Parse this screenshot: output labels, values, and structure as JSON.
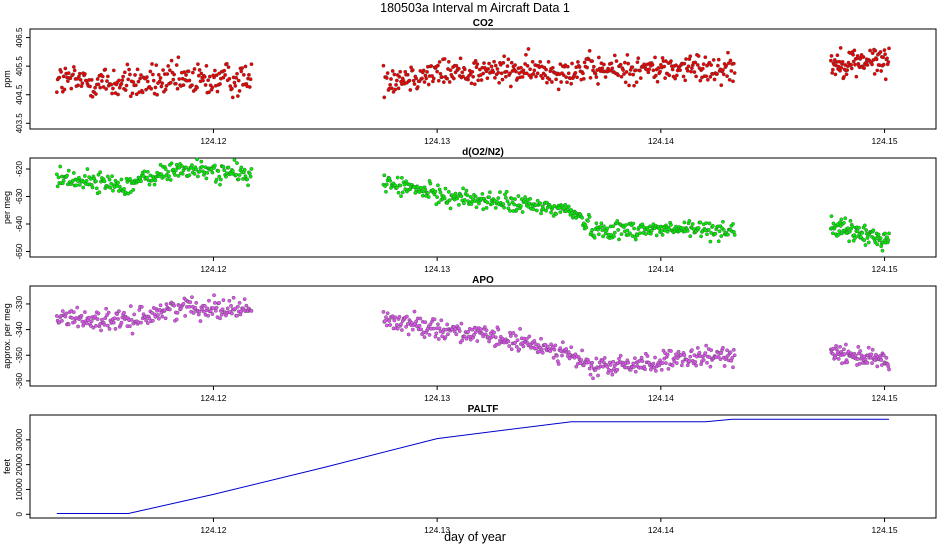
{
  "figure": {
    "title": "180503a   Interval m Aircraft Data 1",
    "xlabel": "day of year"
  },
  "chart_data": [
    {
      "type": "scatter",
      "title": "CO2",
      "xlabel": "day of year",
      "ylabel": "ppm",
      "xlim": [
        124.1118,
        124.1523
      ],
      "ylim": [
        403.3,
        406.8
      ],
      "xticks": [
        "124.12",
        "124.13",
        "124.14",
        "124.15"
      ],
      "yticks": [
        "403.5",
        "404.5",
        "405.5",
        "406.5"
      ],
      "color": "#ee0000",
      "segments": [
        {
          "x_start": 124.113,
          "x_end": 124.1217,
          "trend": [
            [
              124.113,
              405.0
            ],
            [
              124.116,
              404.9
            ],
            [
              124.119,
              405.0
            ],
            [
              124.1217,
              405.05
            ]
          ],
          "noise": 0.55,
          "n": 230
        },
        {
          "x_start": 124.1276,
          "x_end": 124.1433,
          "trend": [
            [
              124.1276,
              405.05
            ],
            [
              124.1305,
              405.3
            ],
            [
              124.136,
              405.35
            ],
            [
              124.1433,
              405.45
            ]
          ],
          "noise": 0.45,
          "n": 420
        },
        {
          "x_start": 124.1476,
          "x_end": 124.1502,
          "trend": [
            [
              124.1476,
              405.6
            ],
            [
              124.1502,
              405.7
            ]
          ],
          "noise": 0.45,
          "n": 90
        }
      ]
    },
    {
      "type": "scatter",
      "title": "d(O2/N2)",
      "xlabel": "day of year",
      "ylabel": "per meg",
      "xlim": [
        124.1118,
        124.1523
      ],
      "ylim": [
        -652,
        -616
      ],
      "xticks": [
        "124.12",
        "124.13",
        "124.14",
        "124.15"
      ],
      "yticks": [
        "-650",
        "-640",
        "-630",
        "-620"
      ],
      "color": "#00ee00",
      "segments": [
        {
          "x_start": 124.113,
          "x_end": 124.1217,
          "trend": [
            [
              124.113,
              -623
            ],
            [
              124.116,
              -626
            ],
            [
              124.1185,
              -620
            ],
            [
              124.1217,
              -622
            ]
          ],
          "noise": 3.2,
          "n": 230
        },
        {
          "x_start": 124.1276,
          "x_end": 124.1433,
          "trend": [
            [
              124.1276,
              -625
            ],
            [
              124.1305,
              -630
            ],
            [
              124.136,
              -635
            ],
            [
              124.137,
              -642
            ],
            [
              124.1433,
              -642
            ]
          ],
          "noise": 3.0,
          "n": 420
        },
        {
          "x_start": 124.1476,
          "x_end": 124.1502,
          "trend": [
            [
              124.1476,
              -641
            ],
            [
              124.1502,
              -646
            ]
          ],
          "noise": 3.2,
          "n": 90
        }
      ]
    },
    {
      "type": "scatter",
      "title": "APO",
      "xlabel": "day of year",
      "ylabel": "approx. per meg",
      "xlim": [
        124.1118,
        124.1523
      ],
      "ylim": [
        -362,
        -323
      ],
      "xticks": [
        "124.12",
        "124.13",
        "124.14",
        "124.15"
      ],
      "yticks": [
        "-360",
        "-350",
        "-340",
        "-330"
      ],
      "color": "#dd55ee",
      "segments": [
        {
          "x_start": 124.113,
          "x_end": 124.1217,
          "trend": [
            [
              124.113,
              -335
            ],
            [
              124.116,
              -337
            ],
            [
              124.1185,
              -331
            ],
            [
              124.1217,
              -332
            ]
          ],
          "noise": 3.5,
          "n": 230
        },
        {
          "x_start": 124.1276,
          "x_end": 124.1433,
          "trend": [
            [
              124.1276,
              -336
            ],
            [
              124.1305,
              -340
            ],
            [
              124.1355,
              -348
            ],
            [
              124.137,
              -355
            ],
            [
              124.1433,
              -350
            ]
          ],
          "noise": 3.4,
          "n": 420
        },
        {
          "x_start": 124.1476,
          "x_end": 124.1502,
          "trend": [
            [
              124.1476,
              -348
            ],
            [
              124.1502,
              -353
            ]
          ],
          "noise": 3.5,
          "n": 90
        }
      ]
    },
    {
      "type": "line",
      "title": "PALTF",
      "xlabel": "day of year",
      "ylabel": "feet",
      "xlim": [
        124.1118,
        124.1523
      ],
      "ylim": [
        -1500,
        40000
      ],
      "xticks": [
        "124.12",
        "124.13",
        "124.14",
        "124.15"
      ],
      "yticks": [
        "0",
        "10000",
        "20000",
        "30000"
      ],
      "color": "#0000cc",
      "x": [
        124.113,
        124.1162,
        124.12,
        124.125,
        124.13,
        124.136,
        124.142,
        124.1432,
        124.1502
      ],
      "y": [
        300,
        300,
        8000,
        19000,
        30500,
        37300,
        37300,
        38300,
        38300
      ]
    }
  ]
}
